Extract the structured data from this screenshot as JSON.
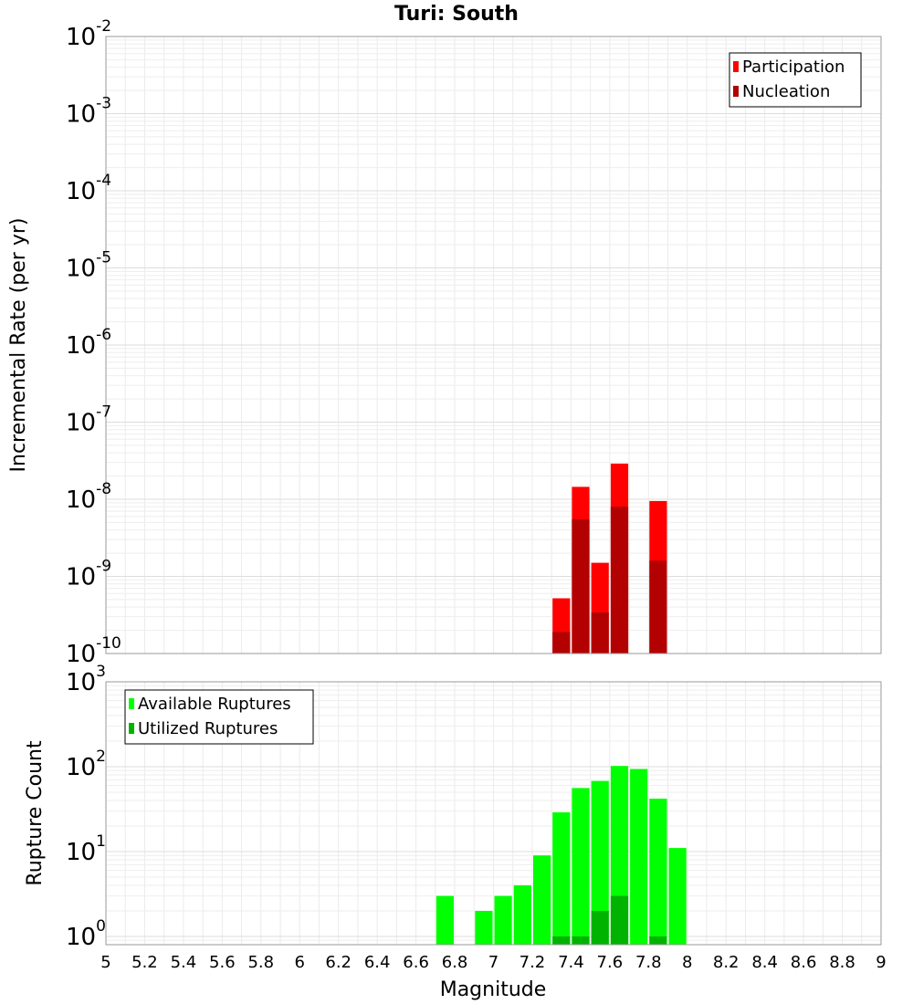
{
  "chart_data": [
    {
      "type": "bar",
      "title": "Turi: South",
      "xlabel": "",
      "ylabel": "Incremental Rate (per yr)",
      "yscale": "log",
      "ylim": [
        1e-10,
        0.01
      ],
      "xlim": [
        5,
        9
      ],
      "y_tick_labels": [
        {
          "base": "10",
          "exp": "-10",
          "value": 1e-10
        },
        {
          "base": "10",
          "exp": "-9",
          "value": 1e-09
        },
        {
          "base": "10",
          "exp": "-8",
          "value": 1e-08
        },
        {
          "base": "10",
          "exp": "-7",
          "value": 1e-07
        },
        {
          "base": "10",
          "exp": "-6",
          "value": 1e-06
        },
        {
          "base": "10",
          "exp": "-5",
          "value": 1e-05
        },
        {
          "base": "10",
          "exp": "-4",
          "value": 0.0001
        },
        {
          "base": "10",
          "exp": "-3",
          "value": 0.001
        },
        {
          "base": "10",
          "exp": "-2",
          "value": 0.01
        }
      ],
      "grid": true,
      "legend": "top-right",
      "series": [
        {
          "name": "Participation",
          "color": "#ff0000",
          "x": [
            7.35,
            7.45,
            7.55,
            7.65,
            7.85
          ],
          "values": [
            5.2e-10,
            1.45e-08,
            1.5e-09,
            2.9e-08,
            9.5e-09
          ]
        },
        {
          "name": "Nucleation",
          "color": "#b30000",
          "x": [
            7.35,
            7.45,
            7.55,
            7.65,
            7.85
          ],
          "values": [
            1.9e-10,
            5.5e-09,
            3.4e-10,
            8e-09,
            1.6e-09
          ]
        }
      ]
    },
    {
      "type": "bar",
      "title": "",
      "xlabel": "Magnitude",
      "ylabel": "Rupture Count",
      "yscale": "log",
      "ylim": [
        0.8,
        1000
      ],
      "xlim": [
        5,
        9
      ],
      "y_tick_labels": [
        {
          "base": "10",
          "exp": "0",
          "value": 1
        },
        {
          "base": "10",
          "exp": "1",
          "value": 10
        },
        {
          "base": "10",
          "exp": "2",
          "value": 100
        },
        {
          "base": "10",
          "exp": "3",
          "value": 1000
        }
      ],
      "x_tick_labels": [
        "5",
        "5.2",
        "5.4",
        "5.6",
        "5.8",
        "6",
        "6.2",
        "6.4",
        "6.6",
        "6.8",
        "7",
        "7.2",
        "7.4",
        "7.6",
        "7.8",
        "8",
        "8.2",
        "8.4",
        "8.6",
        "8.8",
        "9"
      ],
      "grid": true,
      "legend": "top-left",
      "series": [
        {
          "name": "Available Ruptures",
          "color": "#00ff00",
          "x": [
            6.75,
            6.95,
            7.05,
            7.15,
            7.25,
            7.35,
            7.45,
            7.55,
            7.65,
            7.75,
            7.85,
            7.95
          ],
          "values": [
            3,
            2,
            3,
            4,
            9,
            29,
            56,
            68,
            102,
            94,
            42,
            11
          ]
        },
        {
          "name": "Utilized Ruptures",
          "color": "#00b300",
          "x": [
            7.35,
            7.45,
            7.55,
            7.65,
            7.85
          ],
          "values": [
            1,
            1,
            2,
            3,
            1
          ]
        }
      ]
    }
  ]
}
